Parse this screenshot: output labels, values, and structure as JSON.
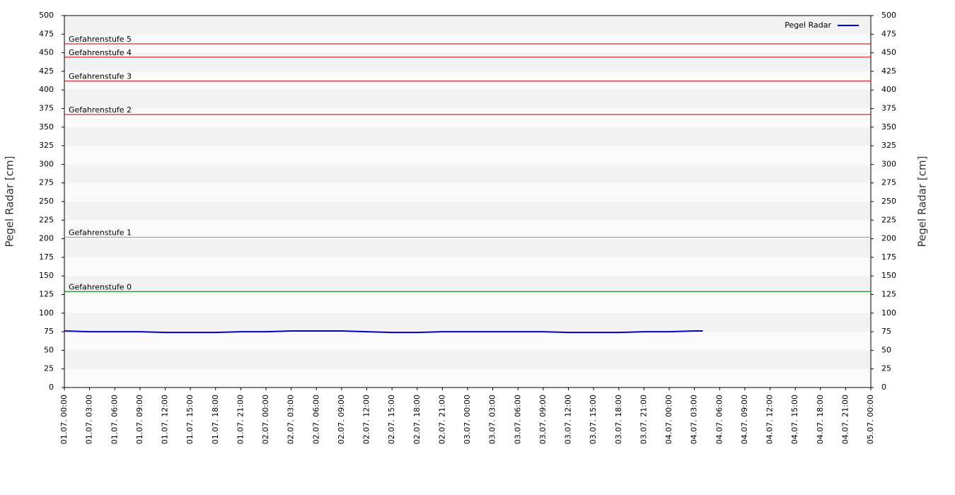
{
  "chart_data": {
    "type": "line",
    "y_label": "Pegel Radar [cm]",
    "y2_label": "Pegel Radar [cm]",
    "x": [
      "01.07. 00:00",
      "01.07. 03:00",
      "01.07. 06:00",
      "01.07. 09:00",
      "01.07. 12:00",
      "01.07. 15:00",
      "01.07. 18:00",
      "01.07. 21:00",
      "02.07. 00:00",
      "02.07. 03:00",
      "02.07. 06:00",
      "02.07. 09:00",
      "02.07. 12:00",
      "02.07. 15:00",
      "02.07. 18:00",
      "02.07. 21:00",
      "03.07. 00:00",
      "03.07. 03:00",
      "03.07. 06:00",
      "03.07. 09:00",
      "03.07. 12:00",
      "03.07. 15:00",
      "03.07. 18:00",
      "03.07. 21:00",
      "04.07. 00:00",
      "04.07. 03:00",
      "04.07. 04:00"
    ],
    "series": [
      {
        "name": "Pegel Radar",
        "color": "#0000cc",
        "values": [
          76,
          75,
          75,
          75,
          74,
          74,
          74,
          75,
          75,
          76,
          76,
          76,
          75,
          74,
          74,
          75,
          75,
          75,
          75,
          75,
          74,
          74,
          74,
          75,
          75,
          76,
          76
        ]
      }
    ],
    "thresholds": [
      {
        "label": "Gefahrenstufe 5",
        "value": 462,
        "color": "#cc0000"
      },
      {
        "label": "Gefahrenstufe 4",
        "value": 444,
        "color": "#cc0000"
      },
      {
        "label": "Gefahrenstufe 3",
        "value": 412,
        "color": "#cc0000"
      },
      {
        "label": "Gefahrenstufe 2",
        "value": 367,
        "color": "#cc0000"
      },
      {
        "label": "Gefahrenstufe 1",
        "value": 202,
        "color": "#e08a00"
      },
      {
        "label": "Gefahrenstufe 0",
        "value": 129,
        "color": "#007000"
      }
    ],
    "xlim": [
      "01.07. 00:00",
      "05.07. 00:00"
    ],
    "xticks": [
      "01.07. 00:00",
      "01.07. 03:00",
      "01.07. 06:00",
      "01.07. 09:00",
      "01.07. 12:00",
      "01.07. 15:00",
      "01.07. 18:00",
      "01.07. 21:00",
      "02.07. 00:00",
      "02.07. 03:00",
      "02.07. 06:00",
      "02.07. 09:00",
      "02.07. 12:00",
      "02.07. 15:00",
      "02.07. 18:00",
      "02.07. 21:00",
      "03.07. 00:00",
      "03.07. 03:00",
      "03.07. 06:00",
      "03.07. 09:00",
      "03.07. 12:00",
      "03.07. 15:00",
      "03.07. 18:00",
      "03.07. 21:00",
      "04.07. 00:00",
      "04.07. 03:00",
      "04.07. 06:00",
      "04.07. 09:00",
      "04.07. 12:00",
      "04.07. 15:00",
      "04.07. 18:00",
      "04.07. 21:00",
      "05.07. 00:00"
    ],
    "ylim": [
      0,
      500
    ],
    "yticks": [
      0,
      25,
      50,
      75,
      100,
      125,
      150,
      175,
      200,
      225,
      250,
      275,
      300,
      325,
      350,
      375,
      400,
      425,
      450,
      475,
      500
    ],
    "y2lim": [
      0,
      500
    ],
    "y2ticks": [
      0,
      25,
      50,
      75,
      100,
      125,
      150,
      175,
      200,
      225,
      250,
      275,
      300,
      325,
      350,
      375,
      400,
      425,
      450,
      475,
      500
    ],
    "grid": true,
    "legend": "top-right"
  }
}
